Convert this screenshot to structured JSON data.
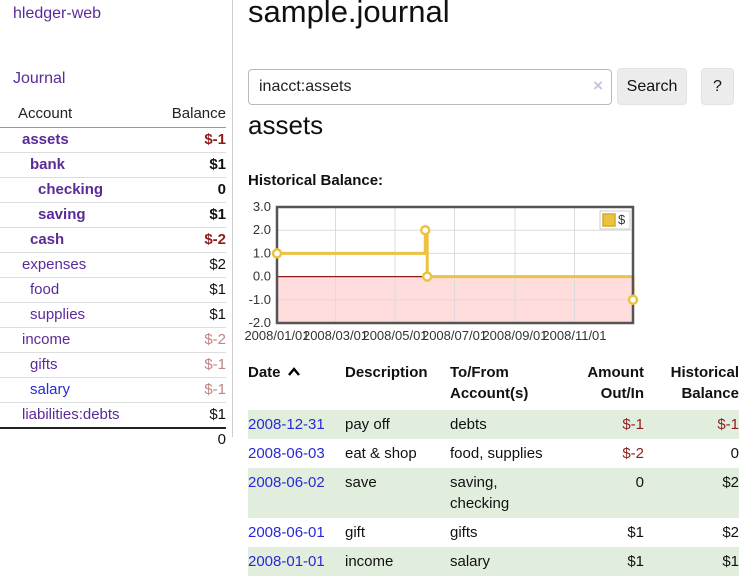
{
  "app": {
    "title": "hledger-web"
  },
  "sidebar": {
    "nav": [
      {
        "label": "Journal"
      }
    ],
    "table": {
      "headers": [
        "Account",
        "Balance"
      ],
      "rows": [
        {
          "name": "assets",
          "indent": 0,
          "bold": true,
          "balance": "$-1",
          "balance_cls": "neg-strong",
          "link_cls": ""
        },
        {
          "name": "bank",
          "indent": 1,
          "bold": true,
          "balance": "$1",
          "balance_cls": "",
          "link_cls": ""
        },
        {
          "name": "checking",
          "indent": 2,
          "bold": true,
          "balance": "0",
          "balance_cls": "",
          "link_cls": ""
        },
        {
          "name": "saving",
          "indent": 2,
          "bold": true,
          "balance": "$1",
          "balance_cls": "",
          "link_cls": ""
        },
        {
          "name": "cash",
          "indent": 1,
          "bold": true,
          "balance": "$-2",
          "balance_cls": "neg-strong",
          "link_cls": ""
        },
        {
          "name": "expenses",
          "indent": 0,
          "bold": false,
          "balance": "$2",
          "balance_cls": "",
          "link_cls": ""
        },
        {
          "name": "food",
          "indent": 1,
          "bold": false,
          "balance": "$1",
          "balance_cls": "",
          "link_cls": ""
        },
        {
          "name": "supplies",
          "indent": 1,
          "bold": false,
          "balance": "$1",
          "balance_cls": "",
          "link_cls": ""
        },
        {
          "name": "income",
          "indent": 0,
          "bold": false,
          "balance": "$-2",
          "balance_cls": "neg-soft",
          "link_cls": ""
        },
        {
          "name": "gifts",
          "indent": 1,
          "bold": false,
          "balance": "$-1",
          "balance_cls": "neg-soft",
          "link_cls": ""
        },
        {
          "name": "salary",
          "indent": 1,
          "bold": false,
          "balance": "$-1",
          "balance_cls": "neg-soft",
          "link_cls": "blue"
        },
        {
          "name": "liabilities:debts",
          "indent": 0,
          "bold": false,
          "balance": "$1",
          "balance_cls": "",
          "link_cls": ""
        }
      ],
      "total": "0"
    }
  },
  "header": {
    "title": "sample.journal"
  },
  "search": {
    "value": "inacct:assets",
    "clear_icon": "×",
    "button": "Search",
    "help_button": "?"
  },
  "main": {
    "account_title": "assets",
    "chart_label": "Historical Balance:"
  },
  "chart_data": {
    "type": "line",
    "step": true,
    "title": "Historical Balance:",
    "x_start": "2008-01-01",
    "x_end": "2008-12-31",
    "series": [
      {
        "name": "$",
        "points": [
          [
            "2008-01-01",
            1
          ],
          [
            "2008-06-01",
            2
          ],
          [
            "2008-06-03",
            0
          ],
          [
            "2008-12-31",
            -1
          ]
        ]
      }
    ],
    "ylim": [
      -2,
      3
    ],
    "yticks": [
      3.0,
      2.0,
      1.0,
      0.0,
      -1.0,
      -2.0
    ],
    "xticks": [
      {
        "label": "2008/01/01",
        "date": "2008-01-01"
      },
      {
        "label": "2008/03/01",
        "date": "2008-03-01"
      },
      {
        "label": "2008/05/01",
        "date": "2008-05-01"
      },
      {
        "label": "2008/07/01",
        "date": "2008-07-01"
      },
      {
        "label": "2008/09/01",
        "date": "2008-09-01"
      },
      {
        "label": "2008/11/01",
        "date": "2008-11-01"
      }
    ],
    "legend": {
      "label": "$",
      "position": "top-right"
    },
    "grid": true,
    "colors": {
      "line": "#edc240",
      "negative_fill": "#ffdddd",
      "zero_line": "#8b1a1a",
      "grid": "#dcdcdc",
      "border": "#545454"
    }
  },
  "transactions": {
    "headers": {
      "date": "Date",
      "description": "Description",
      "accounts": "To/From Account(s)",
      "amount": "Amount Out/In",
      "balance": "Historical Balance"
    },
    "sort": {
      "column": "date",
      "direction": "asc"
    },
    "rows": [
      {
        "date": "2008-12-31",
        "description": "pay off",
        "accounts": "debts",
        "amount": "$-1",
        "amount_cls": "neg",
        "balance": "$-1",
        "balance_cls": "neg"
      },
      {
        "date": "2008-06-03",
        "description": "eat & shop",
        "accounts": "food, supplies",
        "amount": "$-2",
        "amount_cls": "neg",
        "balance": "0",
        "balance_cls": ""
      },
      {
        "date": "2008-06-02",
        "description": "save",
        "accounts": "saving, checking",
        "amount": "0",
        "amount_cls": "",
        "balance": "$2",
        "balance_cls": ""
      },
      {
        "date": "2008-06-01",
        "description": "gift",
        "accounts": "gifts",
        "amount": "$1",
        "amount_cls": "",
        "balance": "$2",
        "balance_cls": ""
      },
      {
        "date": "2008-01-01",
        "description": "income",
        "accounts": "salary",
        "amount": "$1",
        "amount_cls": "",
        "balance": "$1",
        "balance_cls": ""
      }
    ]
  }
}
